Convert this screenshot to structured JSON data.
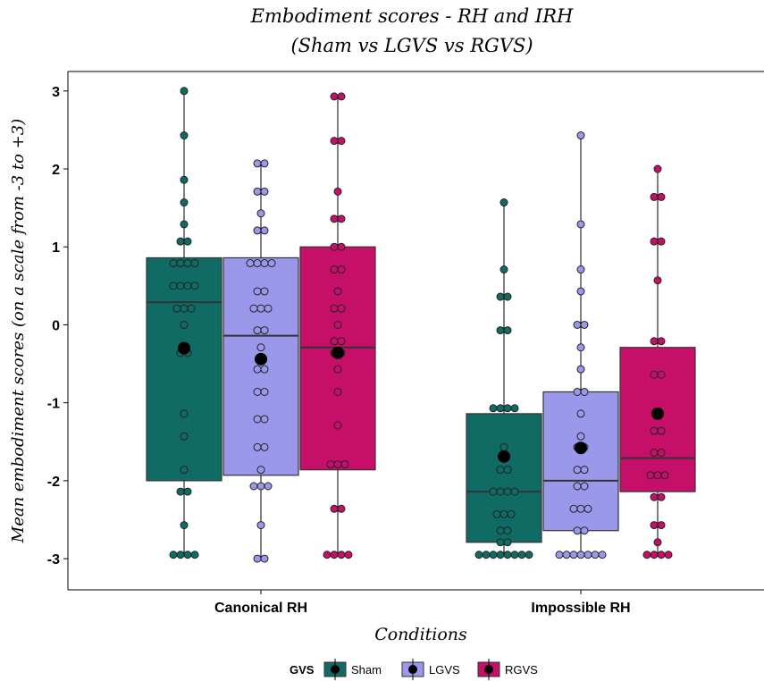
{
  "chart_data": {
    "type": "box",
    "title": "Embodiment scores - RH and IRH",
    "subtitle": "(Sham vs LGVS vs RGVS)",
    "xlabel": "Conditions",
    "ylabel": "Mean embodiment scores (on a scale from -3 to +3)",
    "ylim": [
      -3.4,
      3.25
    ],
    "yticks": [
      -3,
      -2,
      -1,
      0,
      1,
      2,
      3
    ],
    "yticklabels": [
      "-3",
      "-2",
      "-1",
      "0",
      "1",
      "2",
      "3"
    ],
    "categories": [
      "Canonical RH",
      "Impossible RH"
    ],
    "grid": false,
    "legend": {
      "title": "GVS",
      "position": "bottom"
    },
    "series": [
      {
        "name": "Sham",
        "color": "#0f6b63",
        "boxes": [
          {
            "min": -2.95,
            "q1": -2.0,
            "median": 0.29,
            "q3": 0.86,
            "max": 3.0,
            "mean": -0.3,
            "points": [
              3.0,
              2.43,
              1.86,
              1.57,
              1.29,
              1.07,
              1.07,
              0.79,
              0.79,
              0.79,
              0.79,
              0.5,
              0.5,
              0.5,
              0.5,
              0.21,
              0.21,
              0.21,
              0.0,
              -0.36,
              -0.36,
              -1.14,
              -1.43,
              -1.86,
              -2.14,
              -2.14,
              -2.57,
              -2.95,
              -2.95,
              -2.95,
              -2.95
            ]
          },
          {
            "min": -2.95,
            "q1": -2.79,
            "median": -2.14,
            "q3": -1.14,
            "max": 1.57,
            "mean": -1.69,
            "points": [
              1.57,
              0.71,
              0.36,
              0.36,
              -0.07,
              -0.07,
              -1.07,
              -1.07,
              -1.07,
              -1.07,
              -1.57,
              -1.71,
              -1.86,
              -1.86,
              -2.14,
              -2.14,
              -2.14,
              -2.14,
              -2.43,
              -2.43,
              -2.43,
              -2.64,
              -2.64,
              -2.79,
              -2.79,
              -2.95,
              -2.95,
              -2.95,
              -2.95,
              -2.95,
              -2.95,
              -2.95,
              -2.95
            ]
          }
        ]
      },
      {
        "name": "LGVS",
        "color": "#9b98ec",
        "boxes": [
          {
            "min": -3.0,
            "q1": -1.93,
            "median": -0.14,
            "q3": 0.86,
            "max": 2.07,
            "mean": -0.44,
            "points": [
              2.07,
              2.07,
              1.71,
              1.71,
              1.43,
              1.21,
              1.21,
              0.79,
              0.79,
              0.79,
              0.79,
              0.43,
              0.43,
              0.21,
              0.21,
              0.21,
              -0.07,
              -0.07,
              -0.29,
              -0.57,
              -0.57,
              -0.86,
              -0.86,
              -1.21,
              -1.21,
              -1.57,
              -1.57,
              -1.86,
              -2.07,
              -2.07,
              -2.07,
              -2.57,
              -3.0,
              -3.0
            ]
          },
          {
            "min": -2.95,
            "q1": -2.64,
            "median": -2.0,
            "q3": -0.86,
            "max": 2.43,
            "mean": -1.58,
            "points": [
              2.43,
              1.29,
              0.71,
              0.43,
              0.0,
              0.0,
              -0.29,
              -0.57,
              -0.86,
              -0.86,
              -1.14,
              -1.43,
              -1.57,
              -1.57,
              -1.86,
              -1.86,
              -2.07,
              -2.07,
              -2.36,
              -2.36,
              -2.36,
              -2.64,
              -2.64,
              -2.95,
              -2.95,
              -2.95,
              -2.95,
              -2.95,
              -2.95,
              -2.95
            ]
          }
        ]
      },
      {
        "name": "RGVS",
        "color": "#c50f69",
        "boxes": [
          {
            "min": -2.95,
            "q1": -1.86,
            "median": -0.29,
            "q3": 1.0,
            "max": 2.93,
            "mean": -0.36,
            "points": [
              2.93,
              2.93,
              2.36,
              2.36,
              1.71,
              1.36,
              1.36,
              1.0,
              1.0,
              0.71,
              0.71,
              0.43,
              0.21,
              0.21,
              0.0,
              -0.21,
              -0.21,
              -0.36,
              -0.36,
              -0.57,
              -0.86,
              -1.29,
              -1.79,
              -1.79,
              -1.79,
              -2.36,
              -2.36,
              -2.95,
              -2.95,
              -2.95,
              -2.95
            ]
          },
          {
            "min": -2.95,
            "q1": -2.14,
            "median": -1.71,
            "q3": -0.29,
            "max": 2.0,
            "mean": -1.14,
            "points": [
              2.0,
              1.64,
              1.64,
              1.07,
              1.07,
              0.57,
              -0.21,
              -0.21,
              -0.64,
              -0.64,
              -1.14,
              -1.36,
              -1.36,
              -1.64,
              -1.64,
              -1.93,
              -1.93,
              -1.93,
              -2.21,
              -2.21,
              -2.57,
              -2.57,
              -2.79,
              -2.95,
              -2.95,
              -2.95,
              -2.95
            ]
          }
        ]
      }
    ]
  }
}
